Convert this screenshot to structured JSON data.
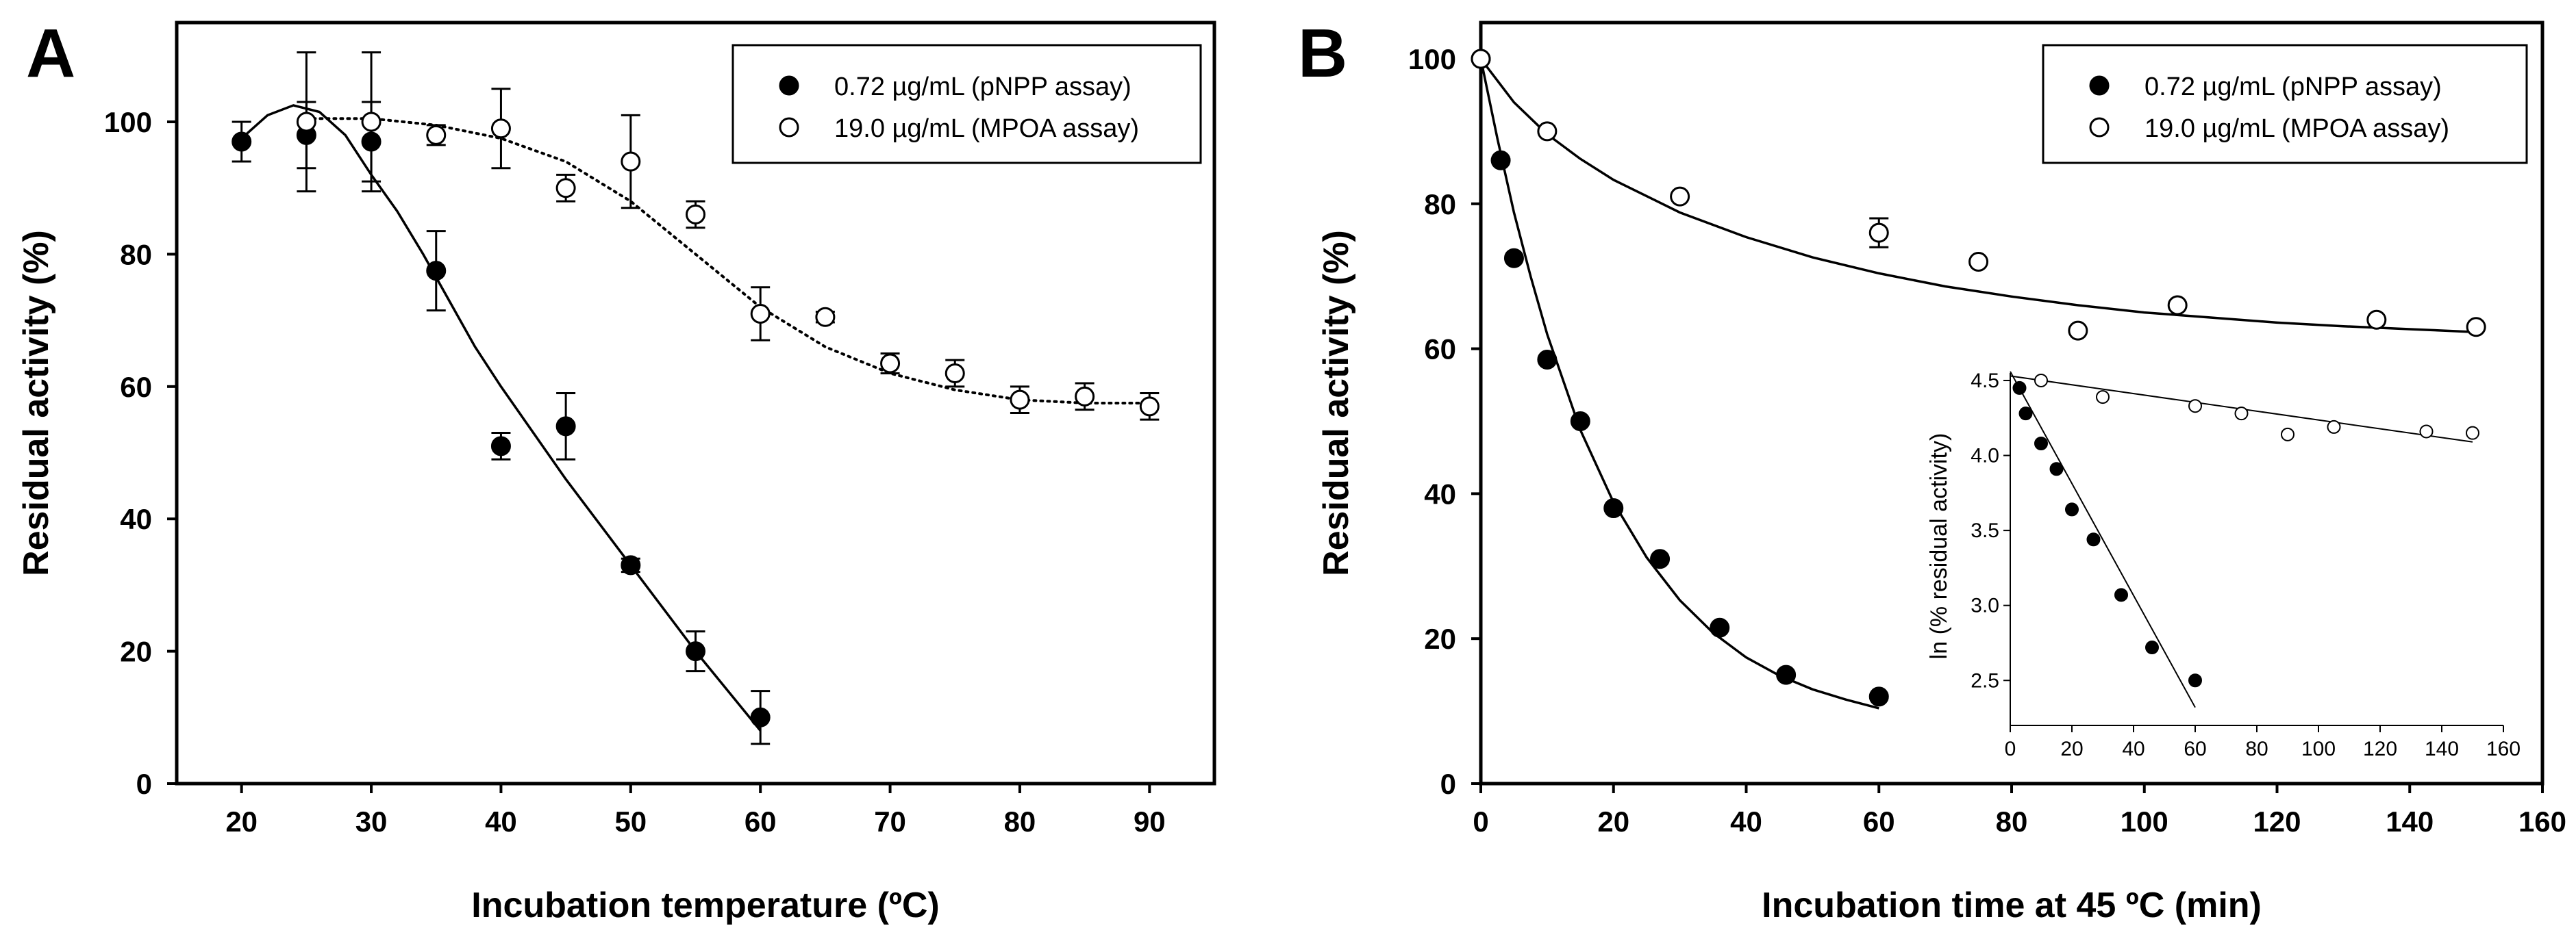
{
  "chart_data": [
    {
      "panel": "A",
      "type": "scatter",
      "xlabel": "Incubation temperature (ºC)",
      "ylabel": "Residual activity (%)",
      "xlim": [
        15,
        95
      ],
      "ylim": [
        0,
        115
      ],
      "xticks": [
        20,
        30,
        40,
        50,
        60,
        70,
        80,
        90
      ],
      "yticks": [
        0,
        20,
        40,
        60,
        80,
        100
      ],
      "legend_position": "top-right",
      "series": [
        {
          "name": "0.72 µg/mL (pNPP assay)",
          "marker": "filled-circle",
          "fit_line": "solid",
          "points": [
            {
              "x": 20,
              "y": 97,
              "err": 3
            },
            {
              "x": 25,
              "y": 98,
              "err": 5
            },
            {
              "x": 30,
              "y": 97,
              "err": 6
            },
            {
              "x": 35,
              "y": 77.5,
              "err": 6
            },
            {
              "x": 40,
              "y": 51,
              "err": 2
            },
            {
              "x": 45,
              "y": 54,
              "err": 5
            },
            {
              "x": 50,
              "y": 33,
              "err": 1
            },
            {
              "x": 55,
              "y": 20,
              "err": 3
            },
            {
              "x": 60,
              "y": 10,
              "err": 4
            }
          ],
          "fit": [
            [
              20,
              97.5
            ],
            [
              22,
              101
            ],
            [
              24,
              102.5
            ],
            [
              26,
              101.5
            ],
            [
              28,
              98
            ],
            [
              30,
              92
            ],
            [
              32,
              86.5
            ],
            [
              34,
              80
            ],
            [
              36,
              73
            ],
            [
              38,
              66
            ],
            [
              40,
              60
            ],
            [
              45,
              46
            ],
            [
              50,
              33
            ],
            [
              55,
              20
            ],
            [
              60,
              8
            ]
          ]
        },
        {
          "name": "19.0 µg/mL (MPOA assay)",
          "marker": "open-circle",
          "fit_line": "dotted",
          "points": [
            {
              "x": 25,
              "y": 100,
              "err": 10.5
            },
            {
              "x": 30,
              "y": 100,
              "err": 10.5
            },
            {
              "x": 35,
              "y": 98,
              "err": 1.5
            },
            {
              "x": 40,
              "y": 99,
              "err": 6
            },
            {
              "x": 45,
              "y": 90,
              "err": 2
            },
            {
              "x": 50,
              "y": 94,
              "err": 7
            },
            {
              "x": 55,
              "y": 86,
              "err": 2
            },
            {
              "x": 60,
              "y": 71,
              "err": 4
            },
            {
              "x": 65,
              "y": 70.5,
              "err": 0.8
            },
            {
              "x": 70,
              "y": 63.5,
              "err": 1.5
            },
            {
              "x": 75,
              "y": 62,
              "err": 2
            },
            {
              "x": 80,
              "y": 58,
              "err": 2
            },
            {
              "x": 85,
              "y": 58.5,
              "err": 2
            },
            {
              "x": 90,
              "y": 57,
              "err": 2
            }
          ],
          "fit": [
            [
              25,
              100.5
            ],
            [
              30,
              100.5
            ],
            [
              35,
              99.5
            ],
            [
              40,
              97.5
            ],
            [
              45,
              94
            ],
            [
              50,
              88
            ],
            [
              55,
              80
            ],
            [
              60,
              72
            ],
            [
              65,
              66
            ],
            [
              70,
              62
            ],
            [
              75,
              59.5
            ],
            [
              80,
              58
            ],
            [
              85,
              57.5
            ],
            [
              90,
              57.5
            ]
          ]
        }
      ]
    },
    {
      "panel": "B",
      "type": "scatter",
      "xlabel": "Incubation time at 45 ºC (min)",
      "ylabel": "Residual activity (%)",
      "xlim": [
        0,
        160
      ],
      "ylim": [
        0,
        105
      ],
      "xticks": [
        0,
        20,
        40,
        60,
        80,
        100,
        120,
        140,
        160
      ],
      "yticks": [
        0,
        20,
        40,
        60,
        80,
        100
      ],
      "legend_position": "top-right",
      "series": [
        {
          "name": "0.72 µg/mL (pNPP assay)",
          "marker": "filled-circle",
          "fit_line": "solid",
          "points": [
            {
              "x": 0,
              "y": 100
            },
            {
              "x": 3,
              "y": 86
            },
            {
              "x": 5,
              "y": 72.5
            },
            {
              "x": 10,
              "y": 58.5
            },
            {
              "x": 15,
              "y": 50
            },
            {
              "x": 20,
              "y": 38
            },
            {
              "x": 27,
              "y": 31
            },
            {
              "x": 36,
              "y": 21.5
            },
            {
              "x": 46,
              "y": 15
            },
            {
              "x": 60,
              "y": 12
            }
          ],
          "fit": [
            [
              0,
              100
            ],
            [
              2.5,
              89
            ],
            [
              5,
              78.8
            ],
            [
              7.5,
              70
            ],
            [
              10,
              62
            ],
            [
              15,
              48.8
            ],
            [
              20,
              38.8
            ],
            [
              25,
              31.2
            ],
            [
              30,
              25.3
            ],
            [
              35,
              20.8
            ],
            [
              40,
              17.4
            ],
            [
              45,
              14.9
            ],
            [
              50,
              13
            ],
            [
              55,
              11.6
            ],
            [
              60,
              10.4
            ]
          ]
        },
        {
          "name": "19.0 µg/mL (MPOA assay)",
          "marker": "open-circle",
          "fit_line": "solid",
          "points": [
            {
              "x": 0,
              "y": 100
            },
            {
              "x": 10,
              "y": 90
            },
            {
              "x": 30,
              "y": 81
            },
            {
              "x": 60,
              "y": 76,
              "err": 2
            },
            {
              "x": 75,
              "y": 72
            },
            {
              "x": 90,
              "y": 62.5
            },
            {
              "x": 105,
              "y": 66
            },
            {
              "x": 135,
              "y": 64
            },
            {
              "x": 150,
              "y": 63
            }
          ],
          "fit": [
            [
              0,
              100
            ],
            [
              5,
              94
            ],
            [
              10,
              89.6
            ],
            [
              15,
              86.2
            ],
            [
              20,
              83.3
            ],
            [
              30,
              78.8
            ],
            [
              40,
              75.4
            ],
            [
              50,
              72.6
            ],
            [
              60,
              70.4
            ],
            [
              70,
              68.6
            ],
            [
              80,
              67.2
            ],
            [
              90,
              66
            ],
            [
              100,
              65
            ],
            [
              110,
              64.3
            ],
            [
              120,
              63.6
            ],
            [
              130,
              63.1
            ],
            [
              140,
              62.7
            ],
            [
              150,
              62.3
            ]
          ]
        }
      ],
      "inset": {
        "xlabel": "",
        "ylabel": "ln (% residual activity)",
        "xlim": [
          0,
          160
        ],
        "ylim": [
          2.2,
          4.55
        ],
        "xticks": [
          0,
          20,
          40,
          60,
          80,
          100,
          120,
          140,
          160
        ],
        "yticks": [
          "2.5",
          "3.0",
          "3.5",
          "4.0",
          "4.5"
        ],
        "series": [
          {
            "name": "0.72 µg/mL (pNPP assay)",
            "marker": "filled-circle",
            "points": [
              [
                3,
                4.45
              ],
              [
                5,
                4.28
              ],
              [
                10,
                4.08
              ],
              [
                15,
                3.91
              ],
              [
                20,
                3.64
              ],
              [
                27,
                3.44
              ],
              [
                36,
                3.07
              ],
              [
                46,
                2.72
              ],
              [
                60,
                2.5
              ]
            ],
            "fit": [
              [
                0,
                4.56
              ],
              [
                60,
                2.32
              ]
            ]
          },
          {
            "name": "19.0 µg/mL (MPOA assay)",
            "marker": "open-circle",
            "points": [
              [
                10,
                4.5
              ],
              [
                30,
                4.39
              ],
              [
                60,
                4.33
              ],
              [
                75,
                4.28
              ],
              [
                90,
                4.14
              ],
              [
                105,
                4.19
              ],
              [
                135,
                4.16
              ],
              [
                150,
                4.15
              ]
            ],
            "fit": [
              [
                0,
                4.53
              ],
              [
                150,
                4.09
              ]
            ]
          }
        ]
      }
    }
  ],
  "panels": [
    {
      "letter": "A",
      "xlabel": "Incubation temperature (ºC)",
      "ylabel": "Residual activity (%)",
      "legend": [
        "0.72 µg/mL (pNPP assay)",
        "19.0 µg/mL (MPOA assay)"
      ]
    },
    {
      "letter": "B",
      "xlabel": "Incubation time at 45 ºC (min)",
      "ylabel": "Residual activity (%)",
      "legend": [
        "0.72 µg/mL (pNPP assay)",
        "19.0 µg/mL (MPOA assay)"
      ],
      "inset_ylabel": "ln (% residual activity)"
    }
  ]
}
